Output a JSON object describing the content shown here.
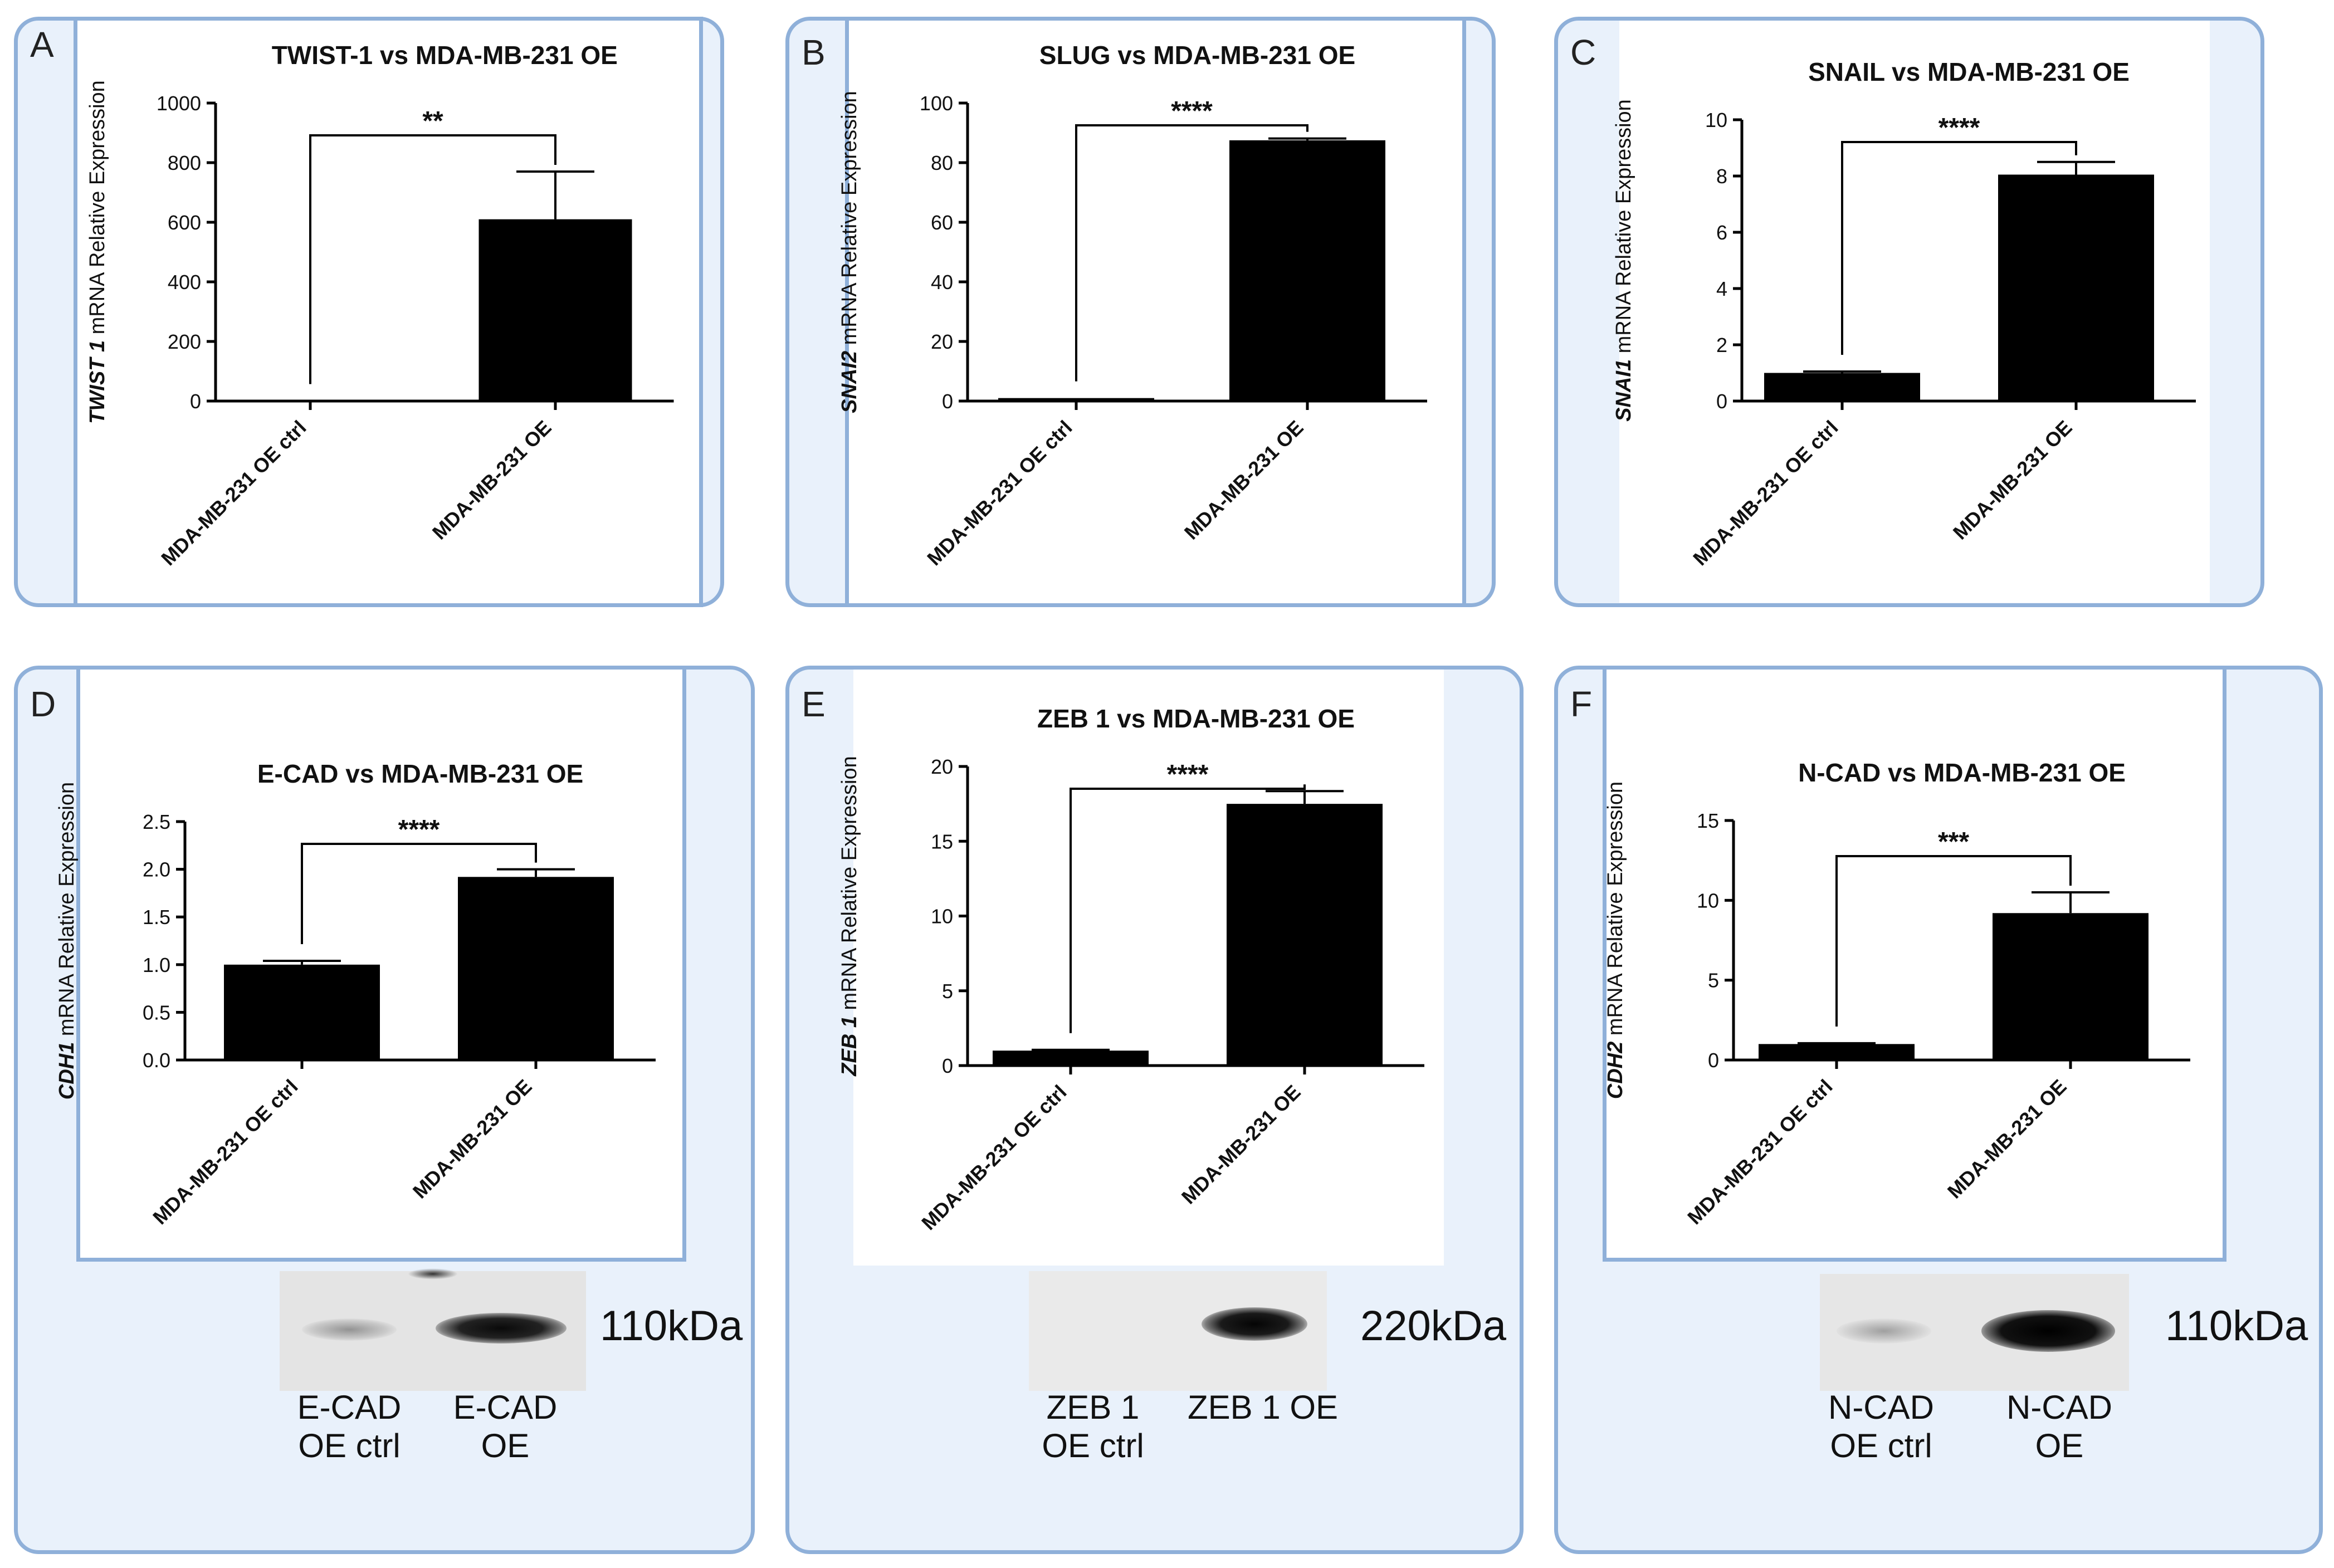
{
  "chart_data": [
    {
      "panel": "A",
      "type": "bar",
      "title": "TWIST-1 vs MDA-MB-231 OE",
      "ylabel_gene": "TWIST 1",
      "ylabel_rest": " mRNA Relative Expression",
      "categories": [
        "MDA-MB-231 OE ctrl",
        "MDA-MB-231 OE"
      ],
      "values": [
        1,
        610
      ],
      "errors": [
        0,
        160
      ],
      "ylim": [
        0,
        1000
      ],
      "yticks": [
        "0",
        "200",
        "400",
        "600",
        "800",
        "1000"
      ],
      "significance": "**"
    },
    {
      "panel": "B",
      "type": "bar",
      "title": "SLUG vs MDA-MB-231 OE",
      "ylabel_gene": "SNAI2",
      "ylabel_rest": " mRNA Relative Expression",
      "categories": [
        "MDA-MB-231 OE ctrl",
        "MDA-MB-231 OE"
      ],
      "values": [
        1,
        87.5
      ],
      "errors": [
        0,
        0.6
      ],
      "ylim": [
        0,
        100
      ],
      "yticks": [
        "0",
        "20",
        "40",
        "60",
        "80",
        "100"
      ],
      "significance": "****"
    },
    {
      "panel": "C",
      "type": "bar",
      "title": "SNAIL vs MDA-MB-231 OE",
      "ylabel_gene": "SNAI1",
      "ylabel_rest": " mRNA Relative Expression",
      "categories": [
        "MDA-MB-231 OE ctrl",
        "MDA-MB-231 OE"
      ],
      "values": [
        1,
        8.05
      ],
      "errors": [
        0.05,
        0.45
      ],
      "ylim": [
        0,
        10
      ],
      "yticks": [
        "0",
        "2",
        "4",
        "6",
        "8",
        "10"
      ],
      "significance": "****"
    },
    {
      "panel": "D",
      "type": "bar",
      "title": "E-CAD vs MDA-MB-231 OE",
      "ylabel_gene": "CDH1",
      "ylabel_rest": " mRNA Relative Expression",
      "categories": [
        "MDA-MB-231 OE ctrl",
        "MDA-MB-231 OE"
      ],
      "values": [
        1.0,
        1.92
      ],
      "errors": [
        0.04,
        0.08
      ],
      "ylim": [
        0,
        2.5
      ],
      "yticks": [
        "0.0",
        "0.5",
        "1.0",
        "1.5",
        "2.0",
        "2.5"
      ],
      "significance": "****"
    },
    {
      "panel": "E",
      "type": "bar",
      "title": "ZEB 1 vs MDA-MB-231 OE",
      "ylabel_gene": "ZEB 1",
      "ylabel_rest": " mRNA Relative Expression",
      "categories": [
        "MDA-MB-231 OE ctrl",
        "MDA-MB-231 OE"
      ],
      "values": [
        1.0,
        17.5
      ],
      "errors": [
        0.05,
        0.85
      ],
      "ylim": [
        0,
        20
      ],
      "yticks": [
        "0",
        "5",
        "10",
        "15",
        "20"
      ],
      "significance": "****"
    },
    {
      "panel": "F",
      "type": "bar",
      "title": "N-CAD vs MDA-MB-231 OE",
      "ylabel_gene": "CDH2",
      "ylabel_rest": " mRNA Relative Expression",
      "categories": [
        "MDA-MB-231 OE ctrl",
        "MDA-MB-231 OE"
      ],
      "values": [
        1.0,
        9.2
      ],
      "errors": [
        0.05,
        1.3
      ],
      "ylim": [
        0,
        15
      ],
      "yticks": [
        "0",
        "5",
        "10",
        "15"
      ],
      "significance": "***"
    }
  ],
  "blots": {
    "D": {
      "kda": "110kDa",
      "lane1": [
        "E-CAD",
        "OE ctrl"
      ],
      "lane2": [
        "E-CAD",
        "OE"
      ]
    },
    "E": {
      "kda": "220kDa",
      "lane1": [
        "ZEB 1",
        "OE ctrl"
      ],
      "lane2": [
        "ZEB 1 OE"
      ]
    },
    "F": {
      "kda": "110kDa",
      "lane1": [
        "N-CAD",
        "OE ctrl"
      ],
      "lane2": [
        "N-CAD",
        "OE"
      ]
    }
  },
  "colors": {
    "bar": "#000000",
    "panel_border": "#8fb0d9",
    "panel_fill": "#e9f1fb"
  }
}
